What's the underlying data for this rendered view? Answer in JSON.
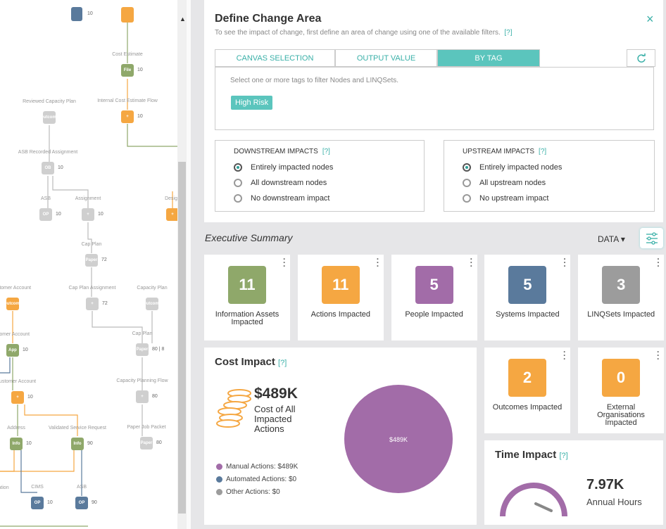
{
  "canvas": {
    "top_count": "10",
    "nodes": [
      {
        "label": "Cost Estimate",
        "icon": "File",
        "count": "10"
      },
      {
        "label": "Reviewed Capacity Plan",
        "icon": "Outcome"
      },
      {
        "label": "Internal Cost Estimate Flow",
        "icon": "+",
        "count": "10"
      },
      {
        "label": "ASB Recorded Assignment",
        "icon": "OB",
        "count": "10"
      },
      {
        "label": "ASB",
        "icon": "OP",
        "count": "10"
      },
      {
        "label": "Assignment",
        "icon": "+",
        "count": "10"
      },
      {
        "label": "Design",
        "icon": "+"
      },
      {
        "label": "Cap Plan",
        "icon": "Paper",
        "count": "72"
      },
      {
        "label": "ustomer Account",
        "icon": "Outcome"
      },
      {
        "label": "Cap Plan Assignment",
        "icon": "+",
        "count": "72"
      },
      {
        "label": "Capacity Plan",
        "icon": "Outcome"
      },
      {
        "label": "stomer Account",
        "icon": "App",
        "count": "10"
      },
      {
        "label": "Cap Plan",
        "icon": "Paper",
        "count": "80 | 8"
      },
      {
        "label": "ustomer Account",
        "icon": "+",
        "count": "10"
      },
      {
        "label": "Capacity Planning Flow",
        "icon": "+",
        "count": "80"
      },
      {
        "label": "Address",
        "icon": "Info",
        "count": "10"
      },
      {
        "label": "Validated Service Request",
        "icon": "Info",
        "count": "90"
      },
      {
        "label": "Paper Job Packet",
        "icon": "Paper",
        "count": "80"
      },
      {
        "label": "ation"
      },
      {
        "label": "CIMS",
        "icon": "OP",
        "count": "10"
      },
      {
        "label": "ASB",
        "icon": "OP",
        "count": "90"
      }
    ]
  },
  "panel": {
    "title": "Define Change Area",
    "close": "×",
    "subtitle": "To see the impact of change, first define an area of change using one of the available filters.",
    "help": "[?]",
    "tabs": [
      "CANVAS SELECTION",
      "OUTPUT VALUE",
      "BY TAG"
    ],
    "active_tab": 2,
    "tag_hint": "Select one or more tags to filter Nodes and LINQSets.",
    "tags": [
      "High Risk"
    ],
    "downstream": {
      "title": "DOWNSTREAM IMPACTS",
      "help": "[?]",
      "options": [
        "Entirely impacted nodes",
        "All downstream nodes",
        "No downstream impact"
      ],
      "selected": 0
    },
    "upstream": {
      "title": "UPSTREAM IMPACTS",
      "help": "[?]",
      "options": [
        "Entirely impacted nodes",
        "All upstream nodes",
        "No upstream impact"
      ],
      "selected": 0
    }
  },
  "summary": {
    "title": "Executive Summary",
    "data_menu": "DATA",
    "cards": [
      {
        "value": 11,
        "label": "Information Assets Impacted",
        "color": "#8fa86a"
      },
      {
        "value": 11,
        "label": "Actions Impacted",
        "color": "#f5a742"
      },
      {
        "value": 5,
        "label": "People Impacted",
        "color": "#a26ca8"
      },
      {
        "value": 5,
        "label": "Systems Impacted",
        "color": "#5a7a9c"
      },
      {
        "value": 3,
        "label": "LINQSets Impacted",
        "color": "#9c9c9c"
      }
    ],
    "outcomes": {
      "value": 2,
      "label": "Outcomes Impacted",
      "color": "#f5a742"
    },
    "external": {
      "value": 0,
      "label": "External Organisations Impacted",
      "color": "#f5a742"
    },
    "cost": {
      "title": "Cost Impact",
      "help": "[?]",
      "total": "$489K",
      "caption": "Cost of All Impacted Actions",
      "pie_label": "$489K",
      "segments": [
        {
          "label": "Manual Actions: $489K",
          "value": 489,
          "color": "#a26ca8"
        },
        {
          "label": "Automated Actions: $0",
          "value": 0,
          "color": "#5a7a9c"
        },
        {
          "label": "Other Actions: $0",
          "value": 0,
          "color": "#9c9c9c"
        }
      ]
    },
    "time": {
      "title": "Time Impact",
      "help": "[?]",
      "value": "7.97K",
      "caption": "Annual Hours"
    }
  }
}
